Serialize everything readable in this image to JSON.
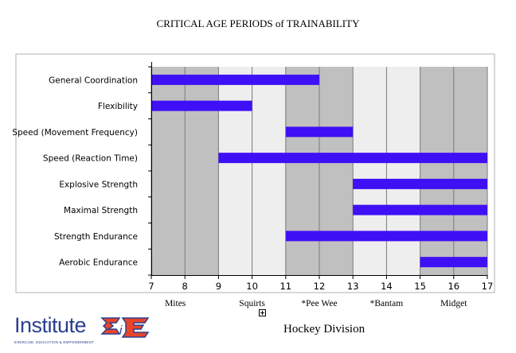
{
  "page_title": "CRITICAL AGE PERIODS of TRAINABILITY",
  "division_title": "Hockey Division",
  "logo": {
    "text": "Institute",
    "tagline": "EXERCISE, EDUCATION & EMPOWERMENT"
  },
  "chart_data": {
    "type": "bar",
    "orientation": "horizontal-range",
    "title": "CRITICAL AGE PERIODS of TRAINABILITY",
    "xlim": [
      7,
      17
    ],
    "x_ticks": [
      7,
      8,
      9,
      10,
      11,
      12,
      13,
      14,
      15,
      16,
      17
    ],
    "categories": [
      "General Coordination",
      "Flexibility",
      "Speed (Movement Frequency)",
      "Speed (Reaction Time)",
      "Explosive Strength",
      "Maximal Strength",
      "Strength Endurance",
      "Aerobic Endurance"
    ],
    "ranges": [
      [
        7,
        12
      ],
      [
        7,
        10
      ],
      [
        11,
        13
      ],
      [
        9,
        17
      ],
      [
        13,
        17
      ],
      [
        13,
        17
      ],
      [
        11,
        17
      ],
      [
        15,
        17
      ]
    ],
    "bar_color": "#3f10f5",
    "divisions": [
      {
        "label": "Mites",
        "start": 7,
        "end": 9,
        "color": "#c0c0c0"
      },
      {
        "label": "Squirts",
        "start": 9,
        "end": 11,
        "color": "#eeeeee"
      },
      {
        "label": "*Pee Wee",
        "start": 11,
        "end": 13,
        "color": "#c0c0c0"
      },
      {
        "label": "*Bantam",
        "start": 13,
        "end": 15,
        "color": "#eeeeee"
      },
      {
        "label": "Midget",
        "start": 15,
        "end": 17,
        "color": "#c0c0c0"
      }
    ]
  }
}
